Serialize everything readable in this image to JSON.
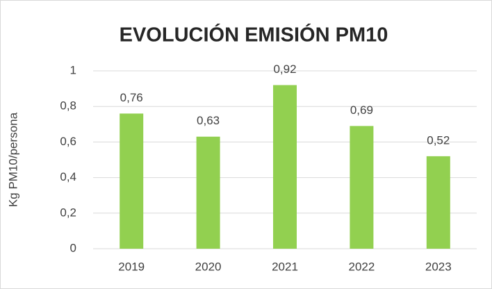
{
  "chart_data": {
    "type": "bar",
    "title": "EVOLUCIÓN EMISIÓN PM10",
    "y_label": "Kg PM10/persona",
    "categories": [
      "2019",
      "2020",
      "2021",
      "2022",
      "2023"
    ],
    "values": [
      0.76,
      0.63,
      0.92,
      0.69,
      0.52
    ],
    "value_labels": [
      "0,76",
      "0,63",
      "0,92",
      "0,69",
      "0,52"
    ],
    "color": "#92d050",
    "ylim": [
      0,
      1
    ],
    "yticks": [
      0,
      {
        "value": 0.2,
        "label": "0,2"
      },
      {
        "value": 0.4,
        "label": "0,4"
      },
      {
        "value": 0.6,
        "label": "0,6"
      },
      {
        "value": 0.8,
        "label": "0,8"
      },
      1
    ],
    "grid": true
  }
}
